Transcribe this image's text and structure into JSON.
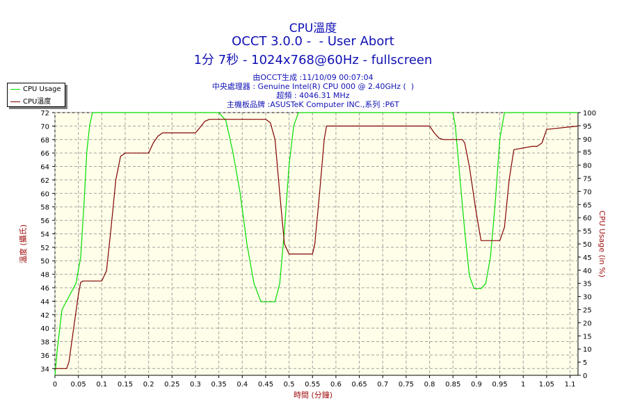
{
  "header": {
    "title": "CPU溫度",
    "line2": "OCCT 3.0.0 -  - User Abort",
    "line3": "1分 7秒 - 1024x768@60Hz - fullscreen",
    "info1": "由OCCT生成 :11/10/09 00:07:04",
    "info2": "中央處理器 : Genuine Intel(R) CPU 000 @ 2.40GHz (  )",
    "info3": "超頻 : 4046.31 MHz",
    "info4": "主機板品牌 :ASUSTeK Computer INC.,系列 :P6T"
  },
  "colors": {
    "plot_bg": "#fffee8",
    "grid": "#a0a0a0",
    "temp_line": "#800000",
    "usage_line": "#00dd00",
    "axis_label": "#a01010"
  },
  "chart_data": {
    "type": "line",
    "xlabel": "時間 (分鐘)",
    "ylabel": "溫度 (攝氏)",
    "y2label": "CPU Usage (in %)",
    "xlim": [
      0,
      1.117
    ],
    "ylim": [
      33,
      72
    ],
    "y2lim": [
      0,
      100
    ],
    "x_ticks": [
      "0",
      "0.05",
      "0.1",
      "0.15",
      "0.2",
      "0.25",
      "0.3",
      "0.35",
      "0.4",
      "0.45",
      "0.5",
      "0.55",
      "0.6",
      "0.65",
      "0.7",
      "0.75",
      "0.8",
      "0.85",
      "0.9",
      "0.95",
      "1",
      "1.05",
      "1.1"
    ],
    "y_ticks": [
      "34",
      "36",
      "38",
      "40",
      "42",
      "44",
      "46",
      "48",
      "50",
      "52",
      "54",
      "56",
      "58",
      "60",
      "62",
      "64",
      "66",
      "68",
      "70",
      "72"
    ],
    "y2_ticks": [
      "0",
      "5",
      "10",
      "15",
      "20",
      "25",
      "30",
      "35",
      "40",
      "45",
      "50",
      "55",
      "60",
      "65",
      "70",
      "75",
      "80",
      "85",
      "90",
      "95",
      "100"
    ],
    "grid": true,
    "legend_position": "top-left",
    "series": [
      {
        "name": "CPU Usage",
        "axis": "right",
        "x": [
          0,
          0.005,
          0.015,
          0.03,
          0.045,
          0.055,
          0.062,
          0.068,
          0.074,
          0.08,
          0.1,
          0.3,
          0.35,
          0.365,
          0.38,
          0.395,
          0.41,
          0.425,
          0.44,
          0.46,
          0.47,
          0.48,
          0.49,
          0.5,
          0.51,
          0.52,
          0.6,
          0.85,
          0.855,
          0.865,
          0.875,
          0.885,
          0.895,
          0.91,
          0.92,
          0.93,
          0.94,
          0.95,
          0.96,
          1.117
        ],
        "values": [
          0,
          10,
          25,
          30,
          35,
          45,
          65,
          85,
          95,
          100,
          100,
          100,
          100,
          97,
          85,
          70,
          50,
          35,
          28,
          28,
          28,
          35,
          55,
          80,
          95,
          100,
          100,
          100,
          95,
          75,
          55,
          38,
          33,
          33,
          35,
          45,
          65,
          90,
          100,
          100
        ]
      },
      {
        "name": "CPU溫度",
        "axis": "left",
        "x": [
          0,
          0.025,
          0.03,
          0.04,
          0.05,
          0.055,
          0.06,
          0.08,
          0.1,
          0.11,
          0.12,
          0.13,
          0.14,
          0.15,
          0.2,
          0.21,
          0.22,
          0.23,
          0.3,
          0.31,
          0.32,
          0.33,
          0.45,
          0.46,
          0.47,
          0.48,
          0.49,
          0.5,
          0.55,
          0.555,
          0.565,
          0.575,
          0.58,
          0.8,
          0.81,
          0.82,
          0.83,
          0.87,
          0.875,
          0.885,
          0.9,
          0.91,
          0.95,
          0.96,
          0.97,
          0.98,
          1.02,
          1.03,
          1.04,
          1.05,
          1.117
        ],
        "values": [
          34,
          34,
          35,
          40,
          45,
          46.8,
          47,
          47,
          47,
          48.5,
          55,
          62,
          65.5,
          66,
          66,
          67.5,
          68.5,
          69,
          69,
          69.8,
          70.7,
          71,
          71,
          70.5,
          68,
          60,
          52.5,
          51,
          51,
          52.5,
          60,
          68,
          70,
          70,
          69,
          68.2,
          68,
          68,
          67.5,
          64,
          57,
          53,
          53,
          55,
          62,
          66.5,
          67,
          67,
          67.5,
          69.5,
          70
        ]
      }
    ]
  }
}
